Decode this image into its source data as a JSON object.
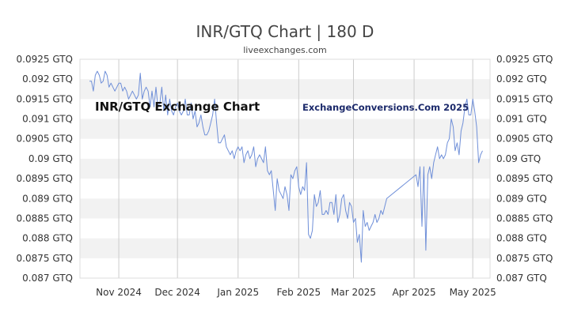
{
  "chart_data": {
    "type": "line",
    "title": "INR/GTQ Chart | 180 D",
    "subtitle": "liveexchanges.com",
    "watermark_left": "INR/GTQ Exchange Chart",
    "watermark_right": "ExchangeConversions.Com 2025",
    "ylim": [
      0.087,
      0.0925
    ],
    "y_ticks": [
      "0.0925 GTQ",
      "0.092 GTQ",
      "0.0915 GTQ",
      "0.091 GTQ",
      "0.0905 GTQ",
      "0.09 GTQ",
      "0.0895 GTQ",
      "0.089 GTQ",
      "0.0885 GTQ",
      "0.088 GTQ",
      "0.0875 GTQ",
      "0.087 GTQ"
    ],
    "x_ticks": [
      "Nov 2024",
      "Dec 2024",
      "Jan 2025",
      "Feb 2025",
      "Mar 2025",
      "Apr 2025",
      "May 2025"
    ],
    "x_tick_dates": [
      "2024-11-01",
      "2024-12-01",
      "2025-01-01",
      "2025-02-01",
      "2025-03-01",
      "2025-04-01",
      "2025-05-01"
    ],
    "grid": "horizontal alternating bands",
    "line_color": "#6f8fd8",
    "series": [
      {
        "points": [
          [
            "2024-10-17",
            0.09195
          ],
          [
            "2024-10-18",
            0.09195
          ],
          [
            "2024-10-19",
            0.0917
          ],
          [
            "2024-10-20",
            0.0921
          ],
          [
            "2024-10-21",
            0.0922
          ],
          [
            "2024-10-22",
            0.0921
          ],
          [
            "2024-10-23",
            0.0919
          ],
          [
            "2024-10-24",
            0.09195
          ],
          [
            "2024-10-25",
            0.0922
          ],
          [
            "2024-10-26",
            0.0921
          ],
          [
            "2024-10-27",
            0.0918
          ],
          [
            "2024-10-28",
            0.0919
          ],
          [
            "2024-10-29",
            0.0918
          ],
          [
            "2024-10-30",
            0.0917
          ],
          [
            "2024-10-31",
            0.0918
          ],
          [
            "2024-11-01",
            0.0919
          ],
          [
            "2024-11-02",
            0.0919
          ],
          [
            "2024-11-03",
            0.0917
          ],
          [
            "2024-11-04",
            0.0918
          ],
          [
            "2024-11-05",
            0.0917
          ],
          [
            "2024-11-06",
            0.0915
          ],
          [
            "2024-11-07",
            0.0916
          ],
          [
            "2024-11-08",
            0.0917
          ],
          [
            "2024-11-09",
            0.0916
          ],
          [
            "2024-11-10",
            0.0915
          ],
          [
            "2024-11-11",
            0.0916
          ],
          [
            "2024-11-12",
            0.09215
          ],
          [
            "2024-11-13",
            0.0915
          ],
          [
            "2024-11-14",
            0.0917
          ],
          [
            "2024-11-15",
            0.0918
          ],
          [
            "2024-11-16",
            0.0917
          ],
          [
            "2024-11-17",
            0.0913
          ],
          [
            "2024-11-18",
            0.0917
          ],
          [
            "2024-11-19",
            0.0913
          ],
          [
            "2024-11-20",
            0.0918
          ],
          [
            "2024-11-21",
            0.0913
          ],
          [
            "2024-11-22",
            0.0914
          ],
          [
            "2024-11-23",
            0.0918
          ],
          [
            "2024-11-24",
            0.0912
          ],
          [
            "2024-11-25",
            0.0916
          ],
          [
            "2024-11-26",
            0.0911
          ],
          [
            "2024-11-27",
            0.0915
          ],
          [
            "2024-11-28",
            0.0912
          ],
          [
            "2024-11-29",
            0.0911
          ],
          [
            "2024-11-30",
            0.0913
          ],
          [
            "2024-12-01",
            0.0914
          ],
          [
            "2024-12-02",
            0.0912
          ],
          [
            "2024-12-03",
            0.0911
          ],
          [
            "2024-12-04",
            0.0912
          ],
          [
            "2024-12-05",
            0.0915
          ],
          [
            "2024-12-06",
            0.0911
          ],
          [
            "2024-12-07",
            0.0911
          ],
          [
            "2024-12-08",
            0.0914
          ],
          [
            "2024-12-09",
            0.091
          ],
          [
            "2024-12-10",
            0.0912
          ],
          [
            "2024-12-11",
            0.0908
          ],
          [
            "2024-12-12",
            0.0909
          ],
          [
            "2024-12-13",
            0.0911
          ],
          [
            "2024-12-14",
            0.0908
          ],
          [
            "2024-12-15",
            0.0906
          ],
          [
            "2024-12-16",
            0.0906
          ],
          [
            "2024-12-17",
            0.0907
          ],
          [
            "2024-12-18",
            0.0909
          ],
          [
            "2024-12-19",
            0.0911
          ],
          [
            "2024-12-20",
            0.0915
          ],
          [
            "2024-12-21",
            0.0909
          ],
          [
            "2024-12-22",
            0.0904
          ],
          [
            "2024-12-23",
            0.0904
          ],
          [
            "2024-12-24",
            0.0905
          ],
          [
            "2024-12-25",
            0.0906
          ],
          [
            "2024-12-26",
            0.0903
          ],
          [
            "2024-12-27",
            0.0902
          ],
          [
            "2024-12-28",
            0.0901
          ],
          [
            "2024-12-29",
            0.0902
          ],
          [
            "2024-12-30",
            0.09
          ],
          [
            "2024-12-31",
            0.0902
          ],
          [
            "2025-01-01",
            0.0903
          ],
          [
            "2025-01-02",
            0.0902
          ],
          [
            "2025-01-03",
            0.0903
          ],
          [
            "2025-01-04",
            0.0899
          ],
          [
            "2025-01-05",
            0.0901
          ],
          [
            "2025-01-06",
            0.0902
          ],
          [
            "2025-01-07",
            0.09
          ],
          [
            "2025-01-08",
            0.0901
          ],
          [
            "2025-01-09",
            0.0903
          ],
          [
            "2025-01-10",
            0.0898
          ],
          [
            "2025-01-11",
            0.09
          ],
          [
            "2025-01-12",
            0.0901
          ],
          [
            "2025-01-13",
            0.09
          ],
          [
            "2025-01-14",
            0.0899
          ],
          [
            "2025-01-15",
            0.0903
          ],
          [
            "2025-01-16",
            0.0897
          ],
          [
            "2025-01-17",
            0.0896
          ],
          [
            "2025-01-18",
            0.0897
          ],
          [
            "2025-01-19",
            0.0892
          ],
          [
            "2025-01-20",
            0.0887
          ],
          [
            "2025-01-21",
            0.0895
          ],
          [
            "2025-01-22",
            0.0892
          ],
          [
            "2025-01-23",
            0.0891
          ],
          [
            "2025-01-24",
            0.089
          ],
          [
            "2025-01-25",
            0.0893
          ],
          [
            "2025-01-26",
            0.0891
          ],
          [
            "2025-01-27",
            0.0887
          ],
          [
            "2025-01-28",
            0.0896
          ],
          [
            "2025-01-29",
            0.0895
          ],
          [
            "2025-01-30",
            0.0897
          ],
          [
            "2025-01-31",
            0.0898
          ],
          [
            "2025-02-01",
            0.0893
          ],
          [
            "2025-02-02",
            0.0891
          ],
          [
            "2025-02-03",
            0.0893
          ],
          [
            "2025-02-04",
            0.0892
          ],
          [
            "2025-02-05",
            0.0899
          ],
          [
            "2025-02-06",
            0.0881
          ],
          [
            "2025-02-07",
            0.088
          ],
          [
            "2025-02-08",
            0.0882
          ],
          [
            "2025-02-09",
            0.0891
          ],
          [
            "2025-02-10",
            0.0888
          ],
          [
            "2025-02-11",
            0.0889
          ],
          [
            "2025-02-12",
            0.0892
          ],
          [
            "2025-02-13",
            0.0886
          ],
          [
            "2025-02-14",
            0.0886
          ],
          [
            "2025-02-15",
            0.0887
          ],
          [
            "2025-02-16",
            0.0886
          ],
          [
            "2025-02-17",
            0.0889
          ],
          [
            "2025-02-18",
            0.0889
          ],
          [
            "2025-02-19",
            0.0886
          ],
          [
            "2025-02-20",
            0.0891
          ],
          [
            "2025-02-21",
            0.0884
          ],
          [
            "2025-02-22",
            0.0886
          ],
          [
            "2025-02-23",
            0.089
          ],
          [
            "2025-02-24",
            0.0891
          ],
          [
            "2025-02-25",
            0.0887
          ],
          [
            "2025-02-26",
            0.0885
          ],
          [
            "2025-02-27",
            0.0889
          ],
          [
            "2025-02-28",
            0.0888
          ],
          [
            "2025-03-01",
            0.0884
          ],
          [
            "2025-03-02",
            0.0885
          ],
          [
            "2025-03-03",
            0.0879
          ],
          [
            "2025-03-04",
            0.0881
          ],
          [
            "2025-03-05",
            0.0874
          ],
          [
            "2025-03-06",
            0.0887
          ],
          [
            "2025-03-07",
            0.0883
          ],
          [
            "2025-03-08",
            0.0884
          ],
          [
            "2025-03-09",
            0.0882
          ],
          [
            "2025-03-10",
            0.0883
          ],
          [
            "2025-03-11",
            0.0884
          ],
          [
            "2025-03-12",
            0.0886
          ],
          [
            "2025-03-13",
            0.0884
          ],
          [
            "2025-03-14",
            0.0885
          ],
          [
            "2025-03-15",
            0.0887
          ],
          [
            "2025-03-16",
            0.0886
          ],
          [
            "2025-03-17",
            0.0888
          ],
          [
            "2025-03-18",
            0.089
          ],
          [
            "2025-04-02",
            0.0896
          ],
          [
            "2025-04-03",
            0.0893
          ],
          [
            "2025-04-04",
            0.0898
          ],
          [
            "2025-04-05",
            0.0883
          ],
          [
            "2025-04-06",
            0.0898
          ],
          [
            "2025-04-07",
            0.0877
          ],
          [
            "2025-04-08",
            0.0896
          ],
          [
            "2025-04-09",
            0.0898
          ],
          [
            "2025-04-10",
            0.0895
          ],
          [
            "2025-04-11",
            0.0899
          ],
          [
            "2025-04-12",
            0.0901
          ],
          [
            "2025-04-13",
            0.0903
          ],
          [
            "2025-04-14",
            0.09
          ],
          [
            "2025-04-15",
            0.0901
          ],
          [
            "2025-04-16",
            0.09
          ],
          [
            "2025-04-17",
            0.0901
          ],
          [
            "2025-04-18",
            0.0904
          ],
          [
            "2025-04-19",
            0.0905
          ],
          [
            "2025-04-20",
            0.091
          ],
          [
            "2025-04-21",
            0.0908
          ],
          [
            "2025-04-22",
            0.0902
          ],
          [
            "2025-04-23",
            0.0904
          ],
          [
            "2025-04-24",
            0.0901
          ],
          [
            "2025-04-25",
            0.0907
          ],
          [
            "2025-04-26",
            0.0909
          ],
          [
            "2025-04-27",
            0.0913
          ],
          [
            "2025-04-28",
            0.0915
          ],
          [
            "2025-04-29",
            0.0911
          ],
          [
            "2025-04-30",
            0.0911
          ],
          [
            "2025-05-01",
            0.0915
          ],
          [
            "2025-05-02",
            0.0912
          ],
          [
            "2025-05-03",
            0.0908
          ],
          [
            "2025-05-04",
            0.0899
          ],
          [
            "2025-05-05",
            0.0901
          ],
          [
            "2025-05-06",
            0.0902
          ]
        ]
      }
    ]
  }
}
